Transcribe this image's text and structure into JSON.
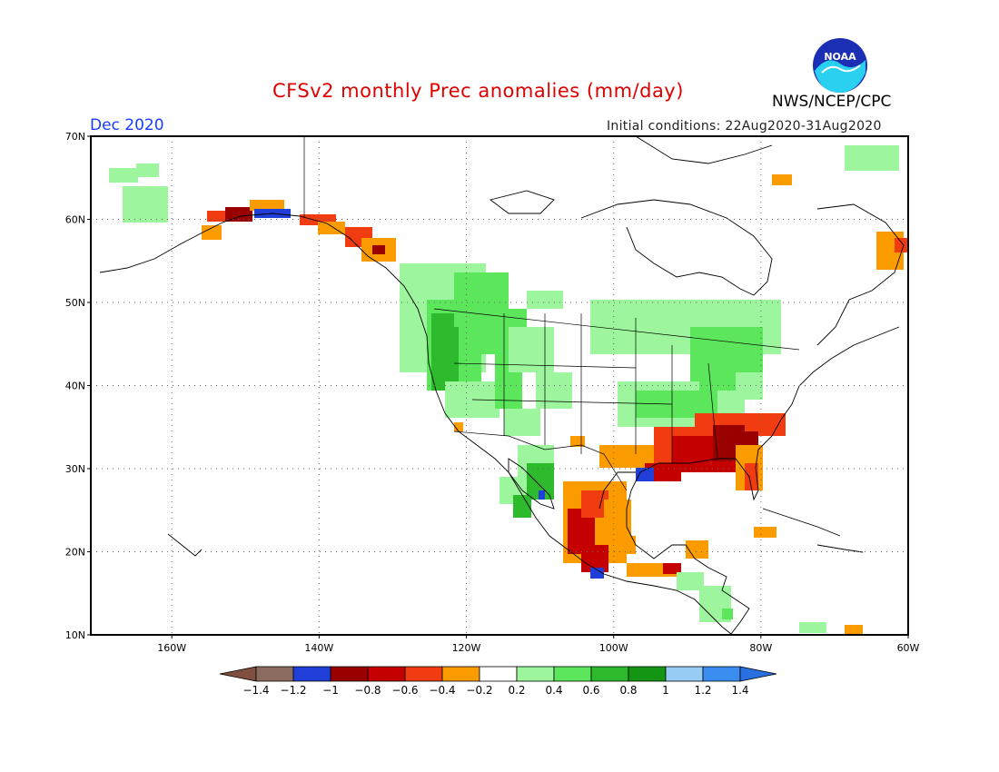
{
  "header": {
    "title": "CFSv2 monthly Prec anomalies (mm/day)",
    "month": "Dec 2020",
    "initial_conditions": "Initial conditions: 22Aug2020-31Aug2020",
    "agency": "NWS/NCEP/CPC",
    "logo_text": "NOAA"
  },
  "map": {
    "lat_range": [
      10,
      70
    ],
    "lon_range": [
      -171,
      -60
    ],
    "lat_ticks": [
      {
        "value": 70,
        "label": "70N"
      },
      {
        "value": 60,
        "label": "60N"
      },
      {
        "value": 50,
        "label": "50N"
      },
      {
        "value": 40,
        "label": "40N"
      },
      {
        "value": 30,
        "label": "30N"
      },
      {
        "value": 20,
        "label": "20N"
      },
      {
        "value": 10,
        "label": "10N"
      }
    ],
    "lon_ticks": [
      {
        "value": -160,
        "label": "160W"
      },
      {
        "value": -140,
        "label": "140W"
      },
      {
        "value": -120,
        "label": "120W"
      },
      {
        "value": -100,
        "label": "100W"
      },
      {
        "value": -80,
        "label": "80W"
      },
      {
        "value": -60,
        "label": "60W"
      }
    ],
    "grid": true
  },
  "colorbar": {
    "boundaries": [
      "-1.4",
      "-1.2",
      "-1",
      "-0.8",
      "-0.6",
      "-0.4",
      "-0.2",
      "0.2",
      "0.4",
      "0.6",
      "0.8",
      "1",
      "1.2",
      "1.4"
    ],
    "colors": [
      "#7f4f3f",
      "#8b6b5f",
      "#1f3fd8",
      "#990000",
      "#c40000",
      "#f03c10",
      "#fa9b00",
      "#ffffff",
      "#9df59d",
      "#5ce65c",
      "#2dba2d",
      "#149614",
      "#97cdf5",
      "#3b8ef0",
      "#2a6fe0"
    ]
  },
  "legend_colors": {
    "brown": "#8b6b5f",
    "blue": "#1f3fd8",
    "darkred": "#990000",
    "red": "#c40000",
    "redorange": "#f03c10",
    "orange": "#fa9b00",
    "lightgreen": "#9df59d",
    "green": "#5ce65c",
    "midgreen": "#2dba2d",
    "darkgreen": "#149614"
  }
}
